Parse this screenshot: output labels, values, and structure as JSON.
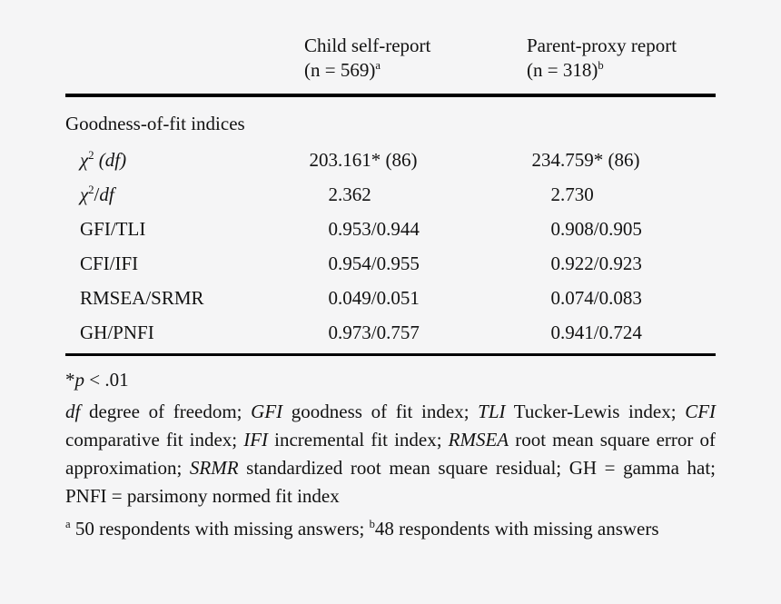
{
  "page": {
    "background": "#f5f5f6",
    "text_color": "#121212",
    "rule_color": "#000000"
  },
  "table": {
    "column_headers": [
      {
        "line1": "Child self-report",
        "line2": [
          {
            "text": "(n = 569)"
          },
          {
            "text": "a",
            "sup": true
          }
        ]
      },
      {
        "line1": "Parent-proxy report",
        "line2": [
          {
            "text": "(n = 318)"
          },
          {
            "text": "b",
            "sup": true
          }
        ]
      }
    ],
    "section_header": "Goodness-of-fit indices",
    "rows": [
      {
        "label": [
          {
            "text": "χ",
            "italic": true
          },
          {
            "text": "2",
            "sup": true
          },
          {
            "text": " "
          },
          {
            "text": "(df)",
            "italic": true
          }
        ],
        "child": "203.161* (86)",
        "parent": "234.759* (86)"
      },
      {
        "label": [
          {
            "text": "χ",
            "italic": true
          },
          {
            "text": "2",
            "sup": true
          },
          {
            "text": "/"
          },
          {
            "text": "df",
            "italic": true
          }
        ],
        "child": "2.362",
        "parent": "2.730"
      },
      {
        "label": [
          {
            "text": "GFI/TLI"
          }
        ],
        "child": "0.953/0.944",
        "parent": "0.908/0.905"
      },
      {
        "label": [
          {
            "text": "CFI/IFI"
          }
        ],
        "child": "0.954/0.955",
        "parent": "0.922/0.923"
      },
      {
        "label": [
          {
            "text": "RMSEA/SRMR"
          }
        ],
        "child": "0.049/0.051",
        "parent": "0.074/0.083"
      },
      {
        "label": [
          {
            "text": "GH/PNFI"
          }
        ],
        "child": "0.973/0.757",
        "parent": "0.941/0.724"
      }
    ]
  },
  "footnotes": {
    "significance": [
      {
        "text": "*"
      },
      {
        "text": "p",
        "italic": true
      },
      {
        "text": " < .01"
      }
    ],
    "definitions": [
      {
        "text": "df",
        "italic": true
      },
      {
        "text": " degree of freedom; "
      },
      {
        "text": "GFI",
        "italic": true
      },
      {
        "text": " goodness of fit index; "
      },
      {
        "text": "TLI",
        "italic": true
      },
      {
        "text": " Tucker-Lewis index; "
      },
      {
        "text": "CFI",
        "italic": true
      },
      {
        "text": " comparative fit index; "
      },
      {
        "text": "IFI",
        "italic": true
      },
      {
        "text": " incremental fit index; "
      },
      {
        "text": "RMSEA",
        "italic": true
      },
      {
        "text": " root mean square error of approximation; "
      },
      {
        "text": "SRMR",
        "italic": true
      },
      {
        "text": " standardized root mean square residual; GH = gamma hat; PNFI = parsimony normed fit index"
      }
    ],
    "respondents": [
      {
        "text": "a",
        "sup": true
      },
      {
        "text": " 50 respondents with missing answers; "
      },
      {
        "text": "b",
        "sup": true
      },
      {
        "text": "48 respondents with missing answers"
      }
    ]
  }
}
